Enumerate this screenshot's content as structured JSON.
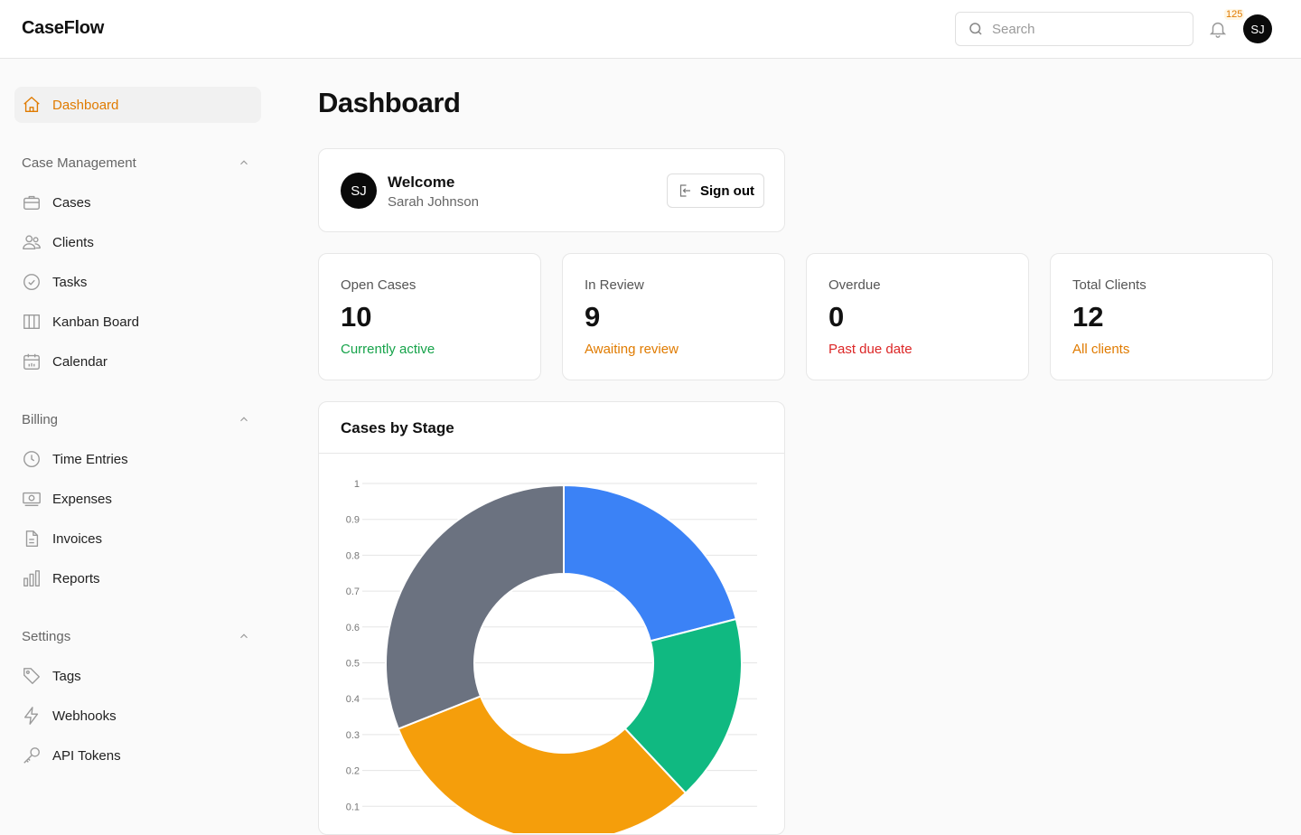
{
  "app": {
    "title": "CaseFlow"
  },
  "header": {
    "search_placeholder": "Search",
    "notification_count": "125",
    "user_initials": "SJ"
  },
  "sidebar": {
    "dashboard": {
      "label": "Dashboard",
      "icon": "home"
    },
    "sections": [
      {
        "title": "Case Management",
        "items": [
          {
            "label": "Cases",
            "icon": "briefcase"
          },
          {
            "label": "Clients",
            "icon": "users"
          },
          {
            "label": "Tasks",
            "icon": "check-circle"
          },
          {
            "label": "Kanban Board",
            "icon": "columns"
          },
          {
            "label": "Calendar",
            "icon": "calendar"
          }
        ]
      },
      {
        "title": "Billing",
        "items": [
          {
            "label": "Time Entries",
            "icon": "clock"
          },
          {
            "label": "Expenses",
            "icon": "banknote"
          },
          {
            "label": "Invoices",
            "icon": "file-text"
          },
          {
            "label": "Reports",
            "icon": "bar-chart"
          }
        ]
      },
      {
        "title": "Settings",
        "items": [
          {
            "label": "Tags",
            "icon": "tag"
          },
          {
            "label": "Webhooks",
            "icon": "zap"
          },
          {
            "label": "API Tokens",
            "icon": "key"
          }
        ]
      }
    ]
  },
  "page": {
    "title": "Dashboard"
  },
  "welcome": {
    "initials": "SJ",
    "title": "Welcome",
    "name": "Sarah Johnson",
    "sign_out": "Sign out"
  },
  "stats": [
    {
      "label": "Open Cases",
      "value": "10",
      "sub": "Currently active",
      "color": "#16a34a"
    },
    {
      "label": "In Review",
      "value": "9",
      "sub": "Awaiting review",
      "color": "#e07b00"
    },
    {
      "label": "Overdue",
      "value": "0",
      "sub": "Past due date",
      "color": "#dc2626"
    },
    {
      "label": "Total Clients",
      "value": "12",
      "sub": "All clients",
      "color": "#e07b00"
    }
  ],
  "chart_data": {
    "type": "pie",
    "title": "Cases by Stage",
    "donut": true,
    "values": [
      0.21,
      0.17,
      0.31,
      0.31
    ],
    "colors": [
      "#3b82f6",
      "#10b981",
      "#f59e0b",
      "#6b7280"
    ],
    "y_ticks": [
      "1",
      "0.9",
      "0.8",
      "0.7",
      "0.6",
      "0.5",
      "0.4",
      "0.3",
      "0.2",
      "0.1"
    ],
    "grid": true
  },
  "colors": {
    "accent": "#e07b00"
  }
}
